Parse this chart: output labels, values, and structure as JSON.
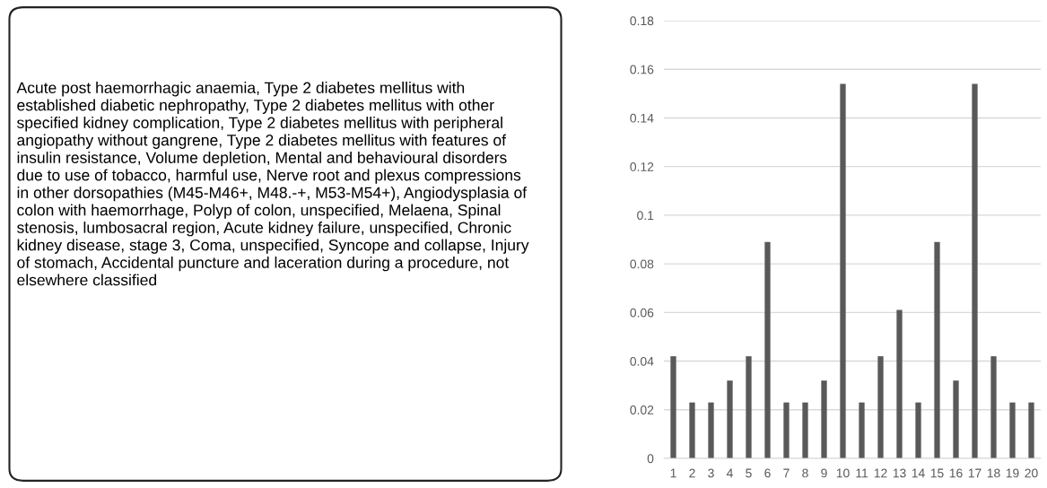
{
  "chart_data": [
    {
      "type": "other",
      "annotations": [
        "Acute post haemorrhagic anaemia, Type 2 diabetes mellitus with established diabetic nephropathy, Type 2 diabetes mellitus with other specified kidney complication, Type 2 diabetes mellitus with peripheral angiopathy without gangrene, Type 2 diabetes mellitus with features of insulin resistance, Volume depletion, Mental and behavioural disorders due to use of tobacco, harmful use, Nerve root and plexus compressions in other dorsopathies (M45-M46+, M48.-+, M53-M54+), Angiodysplasia of colon with haemorrhage, Polyp of colon, unspecified, Melaena, Spinal stenosis, lumbosacral region, Acute kidney failure, unspecified, Chronic kidney disease, stage 3, Coma, unspecified, Syncope and collapse, Injury of stomach, Accidental puncture and laceration during a procedure, not elsewhere classified"
      ]
    },
    {
      "type": "bar",
      "categories": [
        "1",
        "2",
        "3",
        "4",
        "5",
        "6",
        "7",
        "8",
        "9",
        "10",
        "11",
        "12",
        "13",
        "14",
        "15",
        "16",
        "17",
        "18",
        "19",
        "20"
      ],
      "values": [
        0.042,
        0.023,
        0.023,
        0.032,
        0.042,
        0.089,
        0.023,
        0.023,
        0.032,
        0.154,
        0.023,
        0.042,
        0.061,
        0.023,
        0.089,
        0.032,
        0.154,
        0.042,
        0.023,
        0.023
      ],
      "color": "#595959",
      "ylim": [
        0,
        0.18
      ],
      "yticks": [
        0,
        {
          "value": 0.02,
          "label": "0.02"
        },
        {
          "value": 0.04,
          "label": "0.04"
        },
        {
          "value": 0.06,
          "label": "0.06"
        },
        {
          "value": 0.08,
          "label": "0.08"
        },
        {
          "value": 0.1,
          "label": "0.1"
        },
        {
          "value": 0.12,
          "label": "0.12"
        },
        {
          "value": 0.14,
          "label": "0.14"
        },
        {
          "value": 0.16,
          "label": "0.16"
        },
        {
          "value": 0.18,
          "label": "0.18"
        }
      ],
      "grid": "y"
    }
  ]
}
